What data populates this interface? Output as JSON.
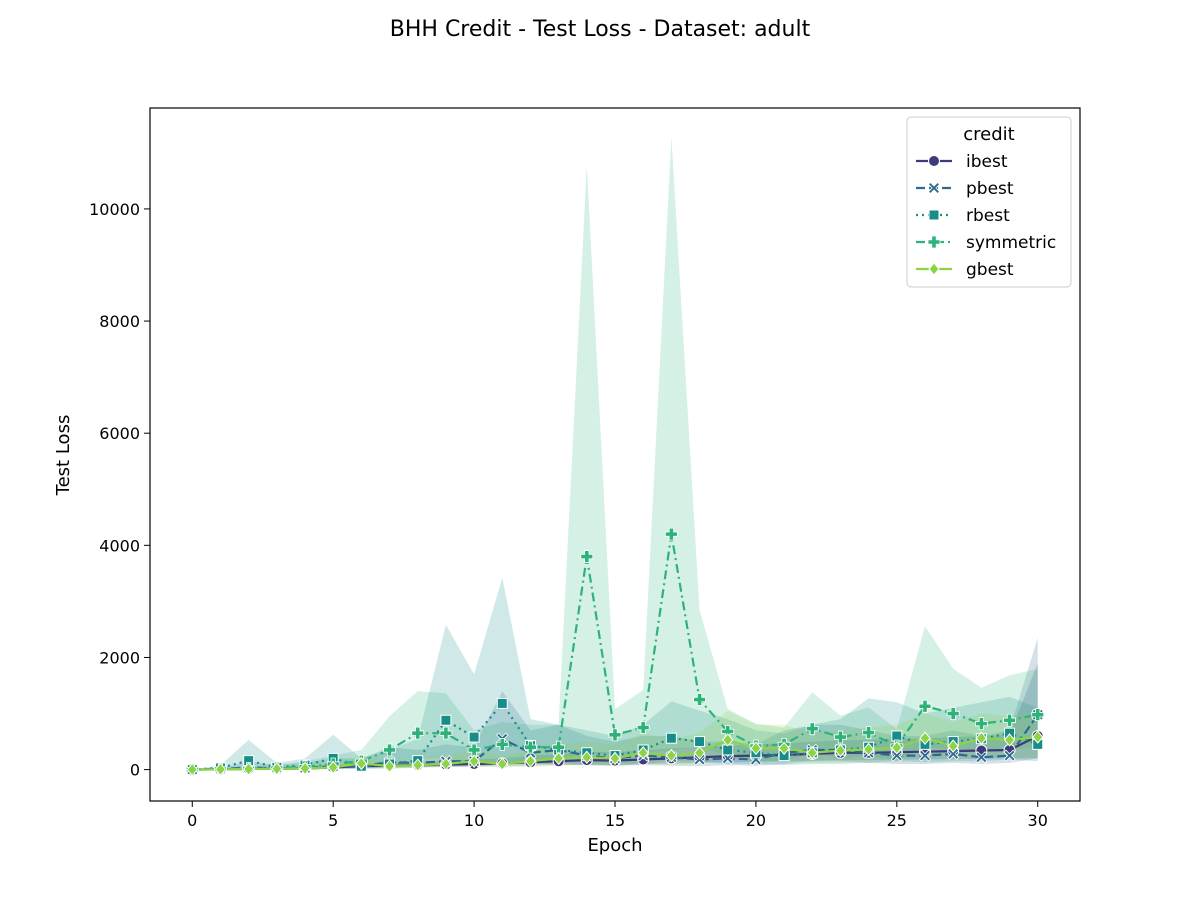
{
  "chart_data": {
    "type": "line",
    "title": "BHH Credit - Test Loss - Dataset: adult",
    "xlabel": "Epoch",
    "ylabel": "Test Loss",
    "xlim": [
      -1.5,
      31.5
    ],
    "ylim": [
      -560,
      11800
    ],
    "xticks": [
      0,
      5,
      10,
      15,
      20,
      25,
      30
    ],
    "yticks": [
      0,
      2000,
      4000,
      6000,
      8000,
      10000
    ],
    "grid": false,
    "legend": {
      "title": "credit",
      "placement": "top-right"
    },
    "x": [
      0,
      1,
      2,
      3,
      4,
      5,
      6,
      7,
      8,
      9,
      10,
      11,
      12,
      13,
      14,
      15,
      16,
      17,
      18,
      19,
      20,
      21,
      22,
      23,
      24,
      25,
      26,
      27,
      28,
      29,
      30
    ],
    "series": [
      {
        "name": "ibest",
        "color": "#3e3a7b",
        "dash": "",
        "marker": "circle",
        "values": [
          0,
          5,
          10,
          15,
          20,
          40,
          60,
          70,
          80,
          90,
          100,
          110,
          130,
          150,
          170,
          160,
          180,
          200,
          220,
          240,
          250,
          260,
          280,
          300,
          300,
          310,
          320,
          330,
          340,
          350,
          600
        ],
        "band_low": [
          0,
          0,
          0,
          5,
          10,
          20,
          30,
          40,
          50,
          50,
          60,
          60,
          70,
          80,
          90,
          90,
          100,
          110,
          120,
          130,
          140,
          150,
          160,
          170,
          170,
          180,
          180,
          190,
          190,
          200,
          200
        ],
        "band_high": [
          0,
          10,
          20,
          30,
          40,
          70,
          100,
          120,
          140,
          160,
          180,
          200,
          250,
          280,
          320,
          310,
          340,
          380,
          400,
          430,
          450,
          470,
          500,
          520,
          530,
          550,
          560,
          580,
          600,
          620,
          1900
        ]
      },
      {
        "name": "pbest",
        "color": "#2c6a8f",
        "dash": "9,4",
        "marker": "x",
        "values": [
          0,
          10,
          40,
          20,
          30,
          60,
          70,
          130,
          120,
          150,
          150,
          550,
          300,
          350,
          250,
          200,
          250,
          220,
          180,
          200,
          180,
          300,
          350,
          350,
          300,
          250,
          250,
          280,
          220,
          250,
          980
        ],
        "band_low": [
          0,
          0,
          0,
          0,
          0,
          10,
          20,
          40,
          40,
          50,
          50,
          100,
          100,
          100,
          80,
          70,
          80,
          70,
          60,
          80,
          70,
          100,
          150,
          150,
          120,
          100,
          100,
          120,
          100,
          120,
          200
        ],
        "band_high": [
          0,
          30,
          150,
          80,
          120,
          200,
          200,
          400,
          350,
          450,
          400,
          1400,
          700,
          800,
          600,
          500,
          600,
          600,
          500,
          500,
          450,
          700,
          800,
          800,
          700,
          600,
          600,
          700,
          600,
          700,
          2350
        ]
      },
      {
        "name": "rbest",
        "color": "#178d8a",
        "dash": "2,4",
        "marker": "square",
        "values": [
          0,
          30,
          160,
          40,
          80,
          200,
          60,
          100,
          160,
          880,
          580,
          1180,
          430,
          350,
          300,
          250,
          350,
          560,
          500,
          350,
          300,
          250,
          300,
          350,
          400,
          600,
          450,
          500,
          550,
          650,
          450
        ],
        "band_low": [
          0,
          0,
          0,
          0,
          0,
          20,
          10,
          20,
          30,
          100,
          100,
          150,
          100,
          100,
          80,
          70,
          100,
          150,
          150,
          100,
          100,
          80,
          100,
          100,
          120,
          150,
          130,
          150,
          150,
          180,
          150
        ],
        "band_high": [
          0,
          80,
          530,
          120,
          200,
          620,
          200,
          350,
          550,
          2580,
          1700,
          3420,
          900,
          800,
          700,
          600,
          800,
          1220,
          1050,
          900,
          700,
          650,
          800,
          900,
          1270,
          1200,
          1000,
          1100,
          1200,
          1300,
          1100
        ]
      },
      {
        "name": "symmetric",
        "color": "#2db37a",
        "dash": "9,4,2,4",
        "marker": "plus",
        "values": [
          0,
          10,
          20,
          30,
          50,
          100,
          150,
          350,
          650,
          650,
          350,
          450,
          400,
          400,
          3800,
          620,
          750,
          4200,
          1250,
          680,
          420,
          450,
          730,
          580,
          660,
          420,
          1130,
          1000,
          820,
          880,
          980
        ],
        "band_low": [
          0,
          0,
          0,
          0,
          10,
          30,
          50,
          100,
          200,
          200,
          100,
          150,
          150,
          150,
          300,
          250,
          300,
          350,
          400,
          250,
          150,
          150,
          300,
          200,
          250,
          150,
          400,
          350,
          300,
          350,
          400
        ],
        "band_high": [
          0,
          30,
          60,
          80,
          150,
          250,
          350,
          950,
          1400,
          1360,
          700,
          850,
          800,
          800,
          10780,
          1080,
          1420,
          11280,
          2850,
          1080,
          820,
          750,
          1380,
          960,
          1110,
          720,
          2560,
          1800,
          1460,
          1680,
          1800
        ]
      },
      {
        "name": "gbest",
        "color": "#8cd446",
        "dash": "",
        "marker": "diamond",
        "values": [
          0,
          5,
          10,
          15,
          20,
          40,
          110,
          60,
          80,
          100,
          150,
          100,
          150,
          200,
          220,
          200,
          300,
          250,
          300,
          530,
          380,
          380,
          300,
          340,
          360,
          390,
          560,
          420,
          560,
          530,
          580
        ],
        "band_low": [
          0,
          0,
          0,
          0,
          5,
          10,
          30,
          20,
          30,
          40,
          50,
          40,
          50,
          70,
          80,
          70,
          100,
          90,
          100,
          200,
          150,
          150,
          120,
          130,
          140,
          150,
          220,
          170,
          220,
          200,
          220
        ],
        "band_high": [
          0,
          15,
          30,
          40,
          60,
          100,
          250,
          150,
          200,
          250,
          350,
          250,
          350,
          450,
          500,
          450,
          650,
          550,
          650,
          1050,
          800,
          800,
          650,
          700,
          750,
          800,
          1000,
          850,
          1000,
          950,
          1050
        ]
      }
    ]
  }
}
